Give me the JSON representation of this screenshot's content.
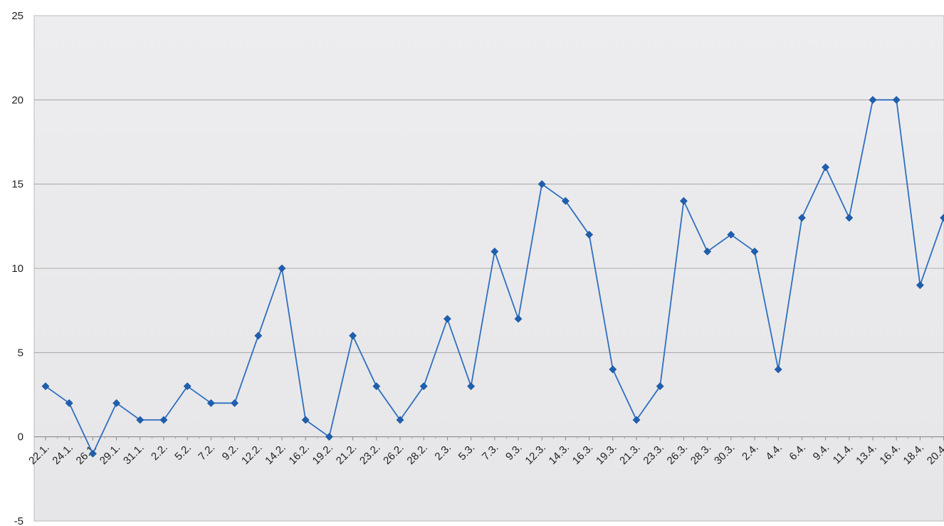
{
  "chart_data": {
    "type": "line",
    "title": "",
    "xlabel": "",
    "ylabel": "",
    "ylim": [
      -5,
      25
    ],
    "yticks": [
      -5,
      0,
      5,
      10,
      15,
      20,
      25
    ],
    "grid": true,
    "categories": [
      "22.1.",
      "24.1.",
      "26.1.",
      "29.1.",
      "31.1.",
      "2.2.",
      "5.2.",
      "7.2.",
      "9.2.",
      "12.2.",
      "14.2.",
      "16.2.",
      "19.2.",
      "21.2.",
      "23.2.",
      "26.2.",
      "28.2.",
      "2.3.",
      "5.3.",
      "7.3.",
      "9.3.",
      "12.3.",
      "14.3.",
      "16.3.",
      "19.3.",
      "21.3.",
      "23.3.",
      "26.3.",
      "28.3.",
      "30.3.",
      "2.4.",
      "4.4.",
      "6.4.",
      "9.4.",
      "11.4.",
      "13.4.",
      "16.4.",
      "18.4.",
      "20.4."
    ],
    "series": [
      {
        "values": [
          3,
          2,
          -1,
          2,
          1,
          1,
          3,
          2,
          2,
          6,
          10,
          1,
          0,
          6,
          3,
          1,
          3,
          7,
          3,
          11,
          7,
          15,
          14,
          12,
          4,
          1,
          3,
          14,
          11,
          12,
          11,
          4,
          13,
          16,
          13,
          20,
          20,
          9,
          13
        ]
      }
    ],
    "colors": {
      "series": "#2f6fbf",
      "marker": "#1f5fb0",
      "plot_bg": "#e9e9eb",
      "grid": "#9a9a9a"
    }
  }
}
